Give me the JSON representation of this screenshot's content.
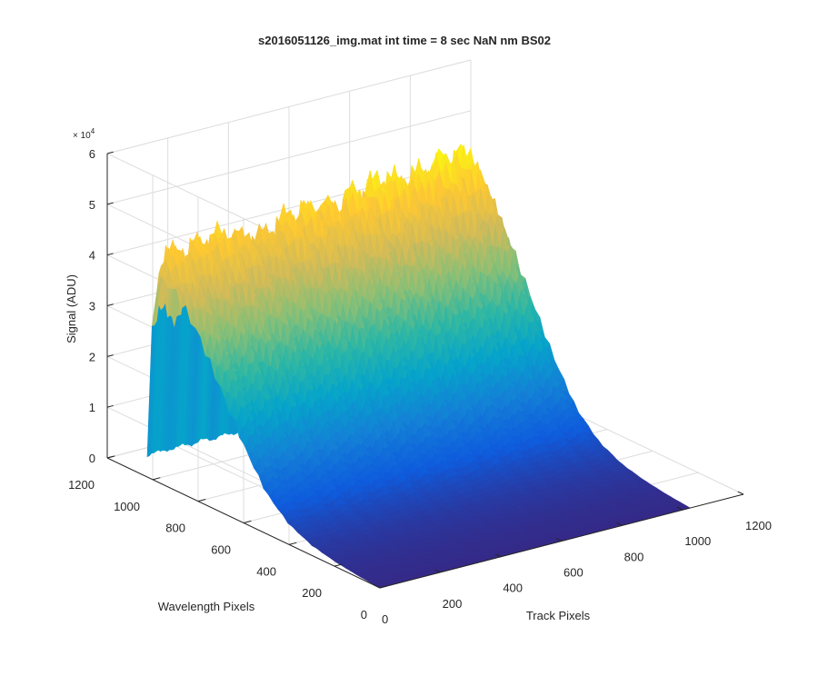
{
  "chart_data": {
    "type": "surface",
    "title": "s2016051126_img.mat int time = 8 sec  NaN nm BS02",
    "xlabel": "Track Pixels",
    "ylabel": "Wavelength Pixels",
    "zlabel": "Signal (ADU)",
    "z_exponent": "× 10",
    "z_exponent_power": "4",
    "xlim": [
      0,
      1200
    ],
    "ylim": [
      0,
      1200
    ],
    "zlim": [
      0,
      60000
    ],
    "xticks": [
      0,
      200,
      400,
      600,
      800,
      1000,
      1200
    ],
    "yticks": [
      0,
      200,
      400,
      600,
      800,
      1000,
      1200
    ],
    "zticks": [
      0,
      1,
      2,
      3,
      4,
      5,
      6
    ],
    "x_tick_labels": [
      "0",
      "200",
      "400",
      "600",
      "800",
      "1000",
      "1200"
    ],
    "y_tick_labels": [
      "0",
      "200",
      "400",
      "600",
      "800",
      "1000",
      "1200"
    ],
    "z_tick_labels": [
      "0",
      "1",
      "2",
      "3",
      "4",
      "5",
      "6"
    ],
    "grid": true,
    "colormap": "parula",
    "data_extent": {
      "x": [
        0,
        1024
      ],
      "y": [
        0,
        1024
      ]
    },
    "track_peak_signal": [
      {
        "track": 0,
        "signal": 47000
      },
      {
        "track": 150,
        "signal": 47000
      },
      {
        "track": 300,
        "signal": 46000
      },
      {
        "track": 500,
        "signal": 48000
      },
      {
        "track": 700,
        "signal": 49500
      },
      {
        "track": 900,
        "signal": 50500
      },
      {
        "track": 1024,
        "signal": 51000
      }
    ],
    "wavelength_profile": [
      {
        "wavelength": 1024,
        "relative": 0.1
      },
      {
        "wavelength": 1010,
        "relative": 0.6
      },
      {
        "wavelength": 990,
        "relative": 0.95
      },
      {
        "wavelength": 960,
        "relative": 1.0
      },
      {
        "wavelength": 900,
        "relative": 0.97
      },
      {
        "wavelength": 800,
        "relative": 0.82
      },
      {
        "wavelength": 700,
        "relative": 0.6
      },
      {
        "wavelength": 600,
        "relative": 0.38
      },
      {
        "wavelength": 500,
        "relative": 0.2
      },
      {
        "wavelength": 400,
        "relative": 0.1
      },
      {
        "wavelength": 300,
        "relative": 0.05
      },
      {
        "wavelength": 200,
        "relative": 0.025
      },
      {
        "wavelength": 100,
        "relative": 0.01
      },
      {
        "wavelength": 0,
        "relative": 0.0
      }
    ],
    "ridge_count": 14,
    "colors": {
      "axis": "#262626",
      "grid": "#dcdcdc",
      "background": "#ffffff",
      "colormap_stops": [
        "#352a87",
        "#0f5cdd",
        "#1481d6",
        "#06a4ca",
        "#2eb7a4",
        "#87bf77",
        "#d1bb59",
        "#fec832",
        "#f9fb0e"
      ]
    }
  }
}
